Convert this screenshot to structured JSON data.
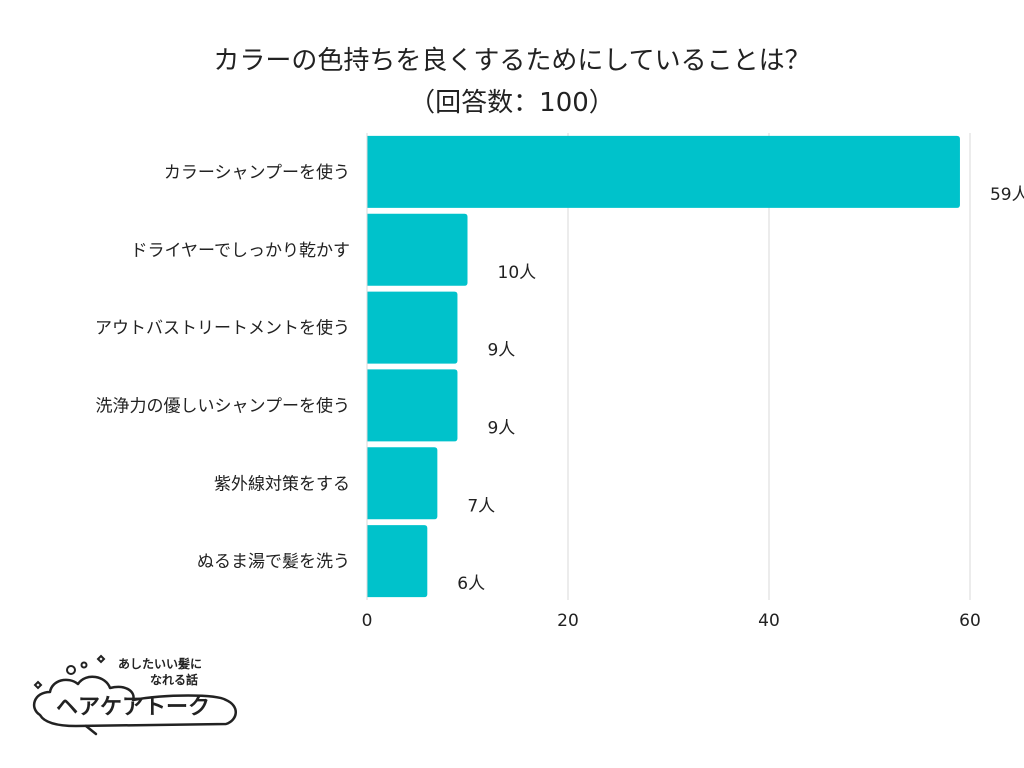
{
  "chart_data": {
    "type": "bar",
    "orientation": "horizontal",
    "title": "カラーの色持ちを良くするためにしていることは？",
    "subtitle": "（回答数：100）",
    "categories": [
      "カラーシャンプーを使う",
      "ドライヤーでしっかり乾かす",
      "アウトバストリートメントを使う",
      "洗浄力の優しいシャンプーを使う",
      "紫外線対策をする",
      "ぬるま湯で髪を洗う"
    ],
    "values": [
      59,
      10,
      9,
      9,
      7,
      6
    ],
    "value_labels": [
      "59人",
      "10人",
      "9人",
      "9人",
      "7人",
      "6人"
    ],
    "xlim": [
      0,
      60
    ],
    "xticks": [
      "0",
      "20",
      "40",
      "60"
    ],
    "grid": true,
    "legend": "none",
    "bar_color": "#00c2cb",
    "grid_color": "#d9d9d9"
  },
  "logo": {
    "tagline_line1": "あしたいい髪に",
    "tagline_line2": "なれる話",
    "name": "ヘアケアトーク"
  }
}
